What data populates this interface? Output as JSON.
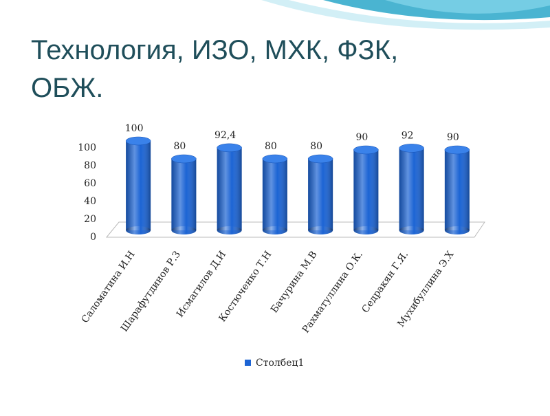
{
  "title": "Технология, ИЗО, МХК, ФЗК, ОБЖ.",
  "chart_data": {
    "type": "bar",
    "categories": [
      "Саломатина И.Н",
      "Шарафутдинов Р.З",
      "Исмагилов Д.И",
      "Костюченко Т.Н",
      "Бачурина М.В",
      "Рахматуллина О.К.",
      "Седракян Г.Я.",
      "Мухибуллина Э.Х"
    ],
    "series": [
      {
        "name": "Столбец1",
        "color": "#1c64d4",
        "values": [
          100,
          80,
          92.4,
          80,
          80,
          90,
          92,
          90
        ],
        "value_labels": [
          "100",
          "80",
          "92,4",
          "80",
          "80",
          "90",
          "92",
          "90"
        ]
      }
    ],
    "ylim": [
      0,
      100
    ],
    "yticks": [
      0,
      20,
      40,
      60,
      80,
      100
    ],
    "legend": "bottom"
  }
}
